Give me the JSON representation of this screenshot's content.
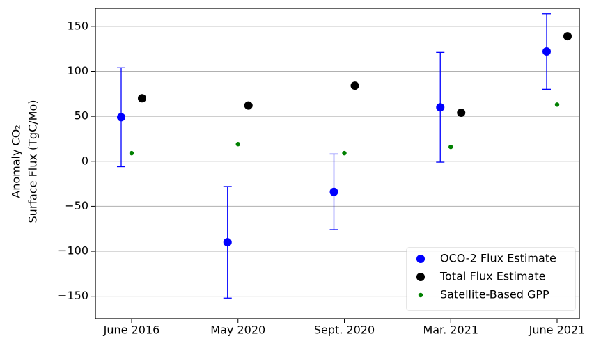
{
  "chart_data": {
    "type": "scatter",
    "y_label": [
      "Anomaly CO₂",
      "Surface Flux (TgC/Mo)"
    ],
    "categories": [
      "June 2016",
      "May 2020",
      "Sept. 2020",
      "Mar. 2021",
      "June 2021"
    ],
    "series": [
      {
        "name": "OCO-2 Flux Estimate",
        "color": "#0000ff",
        "values": [
          49,
          -90,
          -34,
          60,
          122
        ],
        "errors": [
          55,
          62,
          42,
          61,
          42
        ]
      },
      {
        "name": "Total Flux Estimate",
        "color": "#000000",
        "values": [
          70,
          62,
          84,
          54,
          139
        ]
      },
      {
        "name": "Satellite-Based GPP",
        "color": "#008000",
        "values": [
          9,
          19,
          9,
          16,
          63
        ]
      }
    ],
    "ylim": [
      -175,
      170
    ],
    "yticks": [
      {
        "value": -150,
        "label": "−150"
      },
      {
        "value": -100,
        "label": "−100"
      },
      {
        "value": -50,
        "label": "−50"
      },
      0,
      50,
      100,
      150
    ],
    "grid": true,
    "legend": "lower right"
  }
}
